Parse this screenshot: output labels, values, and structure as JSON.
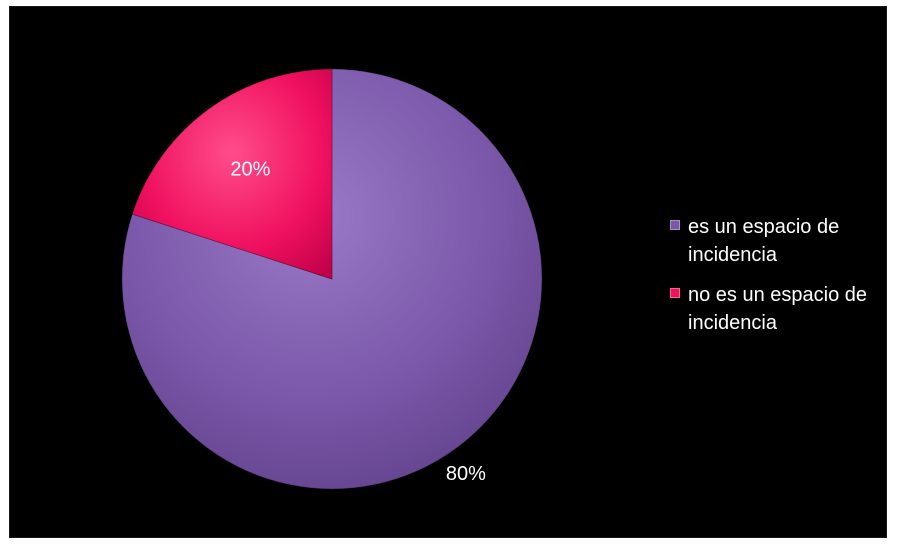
{
  "chart_data": {
    "type": "pie",
    "categories": [
      "es un espacio de incidencia",
      "no es un espacio de incidencia"
    ],
    "values": [
      80,
      20
    ],
    "data_labels": [
      "80%",
      "20%"
    ],
    "colors": [
      "#7a57a8",
      "#f0115f"
    ],
    "legend_placement": "right",
    "title": ""
  }
}
